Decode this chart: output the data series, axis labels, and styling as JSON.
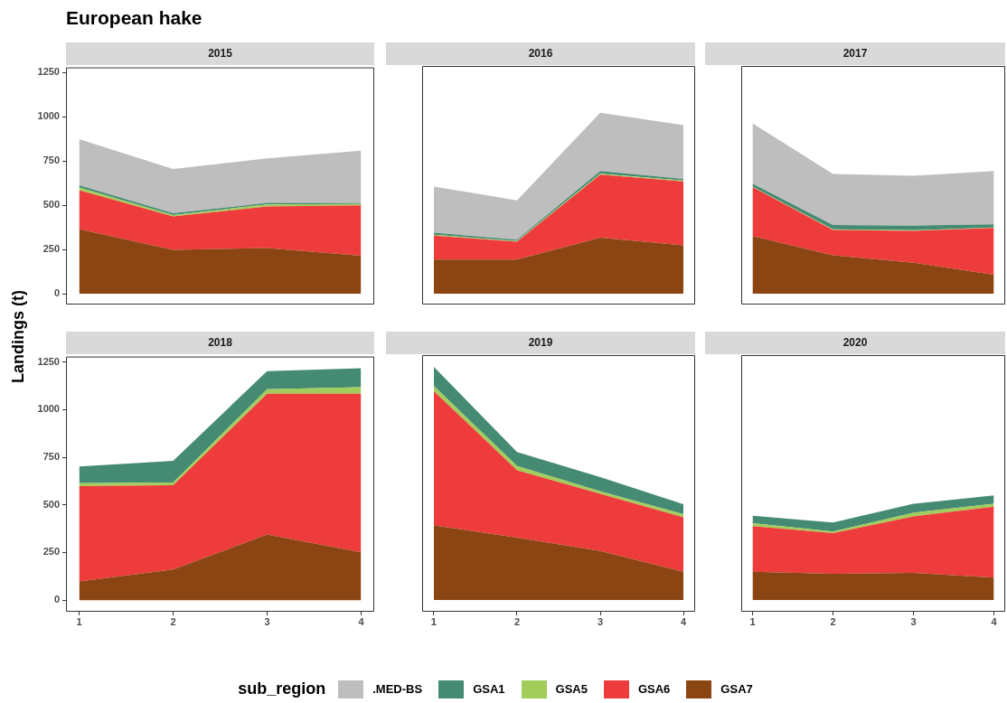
{
  "chart_data": [
    {
      "type": "area",
      "stacked": true,
      "title": "2015",
      "annotations": [
        "European hake"
      ],
      "ylabel": "Landings (t)",
      "legend": "bottom",
      "legend_title": "sub_region",
      "tick_labels": "y",
      "x": [
        1,
        2,
        3,
        4
      ],
      "xlim": [
        0.86,
        4.14
      ],
      "xticks": [
        1,
        2,
        3,
        4
      ],
      "ylim": [
        -61,
        1279
      ],
      "yticks": [
        0,
        250,
        500,
        750,
        1000,
        1250
      ],
      "series": [
        {
          "name": "GSA7",
          "color": "#8b4513",
          "values": [
            365,
            248,
            258,
            215
          ]
        },
        {
          "name": "GSA6",
          "color": "#ee3b3b",
          "values": [
            220,
            189,
            235,
            285
          ]
        },
        {
          "name": "GSA5",
          "color": "#a2cd5a",
          "values": [
            15,
            8,
            12,
            7
          ]
        },
        {
          "name": "GSA1",
          "color": "#458b74",
          "values": [
            13,
            10,
            8,
            5
          ]
        },
        {
          "name": ".MED-BS",
          "color": "#bebebe",
          "values": [
            260,
            250,
            252,
            296
          ]
        }
      ]
    },
    {
      "type": "area",
      "stacked": true,
      "title": "2016",
      "tick_labels": false,
      "x": [
        1,
        2,
        3,
        4
      ],
      "xlim": [
        0.86,
        4.14
      ],
      "xticks": [
        1,
        2,
        3,
        4
      ],
      "ylim": [
        -61,
        1279
      ],
      "yticks": [
        0,
        250,
        500,
        750,
        1000,
        1250
      ],
      "series": [
        {
          "color": "#8b4513",
          "values": [
            192,
            192,
            315,
            271
          ]
        },
        {
          "color": "#ee3b3b",
          "values": [
            134,
            100,
            354,
            360
          ]
        },
        {
          "color": "#a2cd5a",
          "values": [
            5,
            4,
            5,
            4
          ]
        },
        {
          "color": "#458b74",
          "values": [
            11,
            7,
            15,
            10
          ]
        },
        {
          "color": "#bebebe",
          "values": [
            260,
            221,
            327,
            301
          ]
        }
      ]
    },
    {
      "type": "area",
      "stacked": true,
      "title": "2017",
      "tick_labels": false,
      "x": [
        1,
        2,
        3,
        4
      ],
      "xlim": [
        0.86,
        4.14
      ],
      "xticks": [
        1,
        2,
        3,
        4
      ],
      "ylim": [
        -61,
        1279
      ],
      "yticks": [
        0,
        250,
        500,
        750,
        1000,
        1250
      ],
      "series": [
        {
          "color": "#8b4513",
          "values": [
            323,
            216,
            174,
            106
          ]
        },
        {
          "color": "#ee3b3b",
          "values": [
            276,
            142,
            179,
            263
          ]
        },
        {
          "color": "#a2cd5a",
          "values": [
            3,
            3,
            3,
            3
          ]
        },
        {
          "color": "#458b74",
          "values": [
            16,
            25,
            26,
            18
          ]
        },
        {
          "color": "#bebebe",
          "values": [
            339,
            287,
            280,
            299
          ]
        }
      ]
    },
    {
      "type": "area",
      "stacked": true,
      "title": "2018",
      "x": [
        1,
        2,
        3,
        4
      ],
      "xlim": [
        0.86,
        4.14
      ],
      "xticks": [
        1,
        2,
        3,
        4
      ],
      "ylim": [
        -61,
        1279
      ],
      "yticks": [
        0,
        250,
        500,
        750,
        1000,
        1250
      ],
      "series": [
        {
          "color": "#8b4513",
          "values": [
            98,
            161,
            345,
            251
          ]
        },
        {
          "color": "#ee3b3b",
          "values": [
            500,
            442,
            739,
            833
          ]
        },
        {
          "color": "#a2cd5a",
          "values": [
            16,
            15,
            23,
            34
          ]
        },
        {
          "color": "#458b74",
          "values": [
            88,
            114,
            95,
            100
          ]
        }
      ]
    },
    {
      "type": "area",
      "stacked": true,
      "title": "2019",
      "tick_labels": "x",
      "x": [
        1,
        2,
        3,
        4
      ],
      "xlim": [
        0.86,
        4.14
      ],
      "xticks": [
        1,
        2,
        3,
        4
      ],
      "ylim": [
        -61,
        1279
      ],
      "yticks": [
        0,
        250,
        500,
        750,
        1000,
        1250
      ],
      "series": [
        {
          "color": "#8b4513",
          "values": [
            390,
            326,
            256,
            148
          ]
        },
        {
          "color": "#ee3b3b",
          "values": [
            701,
            352,
            299,
            284
          ]
        },
        {
          "color": "#a2cd5a",
          "values": [
            27,
            22,
            13,
            16
          ]
        },
        {
          "color": "#458b74",
          "values": [
            100,
            73,
            74,
            52
          ]
        }
      ]
    },
    {
      "type": "area",
      "stacked": true,
      "title": "2020",
      "tick_labels": "x",
      "x": [
        1,
        2,
        3,
        4
      ],
      "xlim": [
        0.86,
        4.14
      ],
      "xticks": [
        1,
        2,
        3,
        4
      ],
      "ylim": [
        -61,
        1279
      ],
      "yticks": [
        0,
        250,
        500,
        750,
        1000,
        1250
      ],
      "series": [
        {
          "color": "#8b4513",
          "values": [
            148,
            137,
            142,
            117
          ]
        },
        {
          "color": "#ee3b3b",
          "values": [
            238,
            213,
            295,
            370
          ]
        },
        {
          "color": "#a2cd5a",
          "values": [
            15,
            8,
            19,
            16
          ]
        },
        {
          "color": "#458b74",
          "values": [
            39,
            47,
            47,
            44
          ]
        }
      ]
    }
  ]
}
